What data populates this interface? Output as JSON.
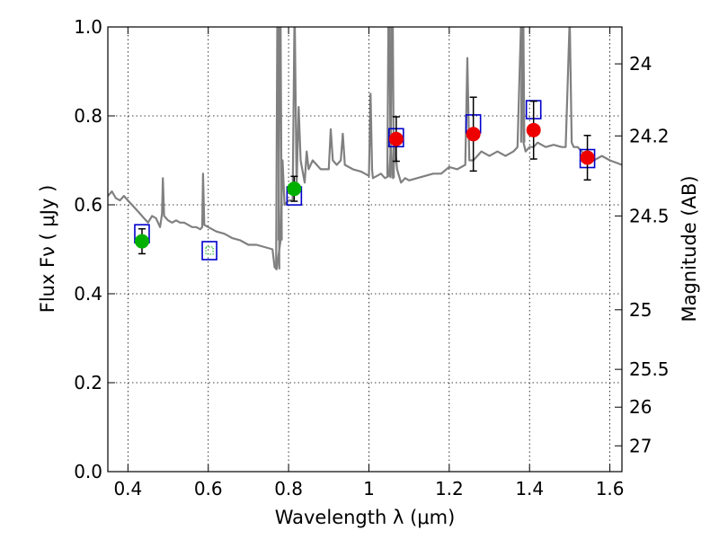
{
  "chart_data": {
    "type": "scatter",
    "title": "",
    "xlabel": "Wavelength  λ (μm)",
    "ylabel": "Flux  Fν  ( μJy )",
    "y2label": "Magnitude (AB)",
    "xlim": [
      0.35,
      1.63
    ],
    "ylim": [
      0.0,
      1.0
    ],
    "grid": true,
    "x_ticks": [
      0.4,
      0.6,
      0.8,
      1.0,
      1.2,
      1.4,
      1.6
    ],
    "x_tick_labels": [
      "0.4",
      "0.6",
      "0.8",
      "1",
      "1.2",
      "1.4",
      "1.6"
    ],
    "y_ticks": [
      0.0,
      0.2,
      0.4,
      0.6,
      0.8,
      1.0
    ],
    "y_tick_labels": [
      "0.0",
      "0.2",
      "0.4",
      "0.6",
      "0.8",
      "1.0"
    ],
    "mag_ticks": [
      {
        "y": 0.917,
        "label": "24"
      },
      {
        "y": 0.755,
        "label": "24.2"
      },
      {
        "y": 0.575,
        "label": "24.5"
      },
      {
        "y": 0.364,
        "label": "25"
      },
      {
        "y": 0.23,
        "label": "25.5"
      },
      {
        "y": 0.145,
        "label": "26"
      },
      {
        "y": 0.058,
        "label": "27"
      }
    ],
    "colors": {
      "spectrum": "#808080",
      "model_box": "#0000cc",
      "green_point": "#00b000",
      "red_point": "#ee0000",
      "error_bar": "#000000"
    },
    "spectrum": {
      "x": [
        0.35,
        0.36,
        0.37,
        0.38,
        0.39,
        0.4,
        0.41,
        0.42,
        0.43,
        0.44,
        0.45,
        0.46,
        0.47,
        0.48,
        0.485,
        0.487,
        0.49,
        0.5,
        0.51,
        0.52,
        0.53,
        0.54,
        0.55,
        0.56,
        0.57,
        0.58,
        0.585,
        0.587,
        0.59,
        0.6,
        0.62,
        0.64,
        0.66,
        0.68,
        0.7,
        0.72,
        0.74,
        0.76,
        0.765,
        0.77,
        0.78,
        0.785,
        0.79,
        0.8,
        0.81,
        0.815,
        0.82,
        0.825,
        0.83,
        0.84,
        0.845,
        0.85,
        0.86,
        0.87,
        0.88,
        0.9,
        0.905,
        0.91,
        0.92,
        0.93,
        0.935,
        0.94,
        0.96,
        0.98,
        0.99,
        1.0,
        1.004,
        1.008,
        1.01,
        1.02,
        1.03,
        1.04,
        1.05,
        1.055,
        1.06,
        1.065,
        1.07,
        1.08,
        1.09,
        1.1,
        1.12,
        1.14,
        1.16,
        1.18,
        1.2,
        1.22,
        1.24,
        1.245,
        1.25,
        1.26,
        1.28,
        1.3,
        1.32,
        1.34,
        1.36,
        1.37,
        1.38,
        1.385,
        1.39,
        1.4,
        1.41,
        1.42,
        1.44,
        1.46,
        1.48,
        1.49,
        1.5,
        1.505,
        1.51,
        1.52,
        1.54,
        1.56,
        1.58,
        1.6,
        1.63
      ],
      "y": [
        0.62,
        0.63,
        0.615,
        0.61,
        0.62,
        0.61,
        0.6,
        0.59,
        0.58,
        0.57,
        0.56,
        0.575,
        0.57,
        0.55,
        0.58,
        0.66,
        0.575,
        0.565,
        0.56,
        0.565,
        0.56,
        0.56,
        0.555,
        0.55,
        0.55,
        0.545,
        0.55,
        0.67,
        0.555,
        0.55,
        0.54,
        0.535,
        0.525,
        0.52,
        0.51,
        0.51,
        0.505,
        0.5,
        0.46,
        0.455,
        0.52,
        0.7,
        0.6,
        0.61,
        0.61,
        1.05,
        0.64,
        0.82,
        0.7,
        0.65,
        0.72,
        0.68,
        0.7,
        0.69,
        0.68,
        0.68,
        0.77,
        0.7,
        0.69,
        0.7,
        0.76,
        0.69,
        0.68,
        0.675,
        0.67,
        0.665,
        0.85,
        0.68,
        0.66,
        0.665,
        0.67,
        0.66,
        0.665,
        0.73,
        0.66,
        0.73,
        0.68,
        0.65,
        0.66,
        0.655,
        0.66,
        0.665,
        0.67,
        0.67,
        0.685,
        0.68,
        0.69,
        0.93,
        0.7,
        0.7,
        0.72,
        0.71,
        0.72,
        0.71,
        0.72,
        0.73,
        1.05,
        0.74,
        0.72,
        0.73,
        0.73,
        0.74,
        0.73,
        0.735,
        0.73,
        0.73,
        1.02,
        0.74,
        0.73,
        0.73,
        0.71,
        0.7,
        0.71,
        0.7,
        0.69
      ]
    },
    "spectrum_peaks": [
      {
        "x": 0.773,
        "y": 1.2
      },
      {
        "x": 0.779,
        "y": 1.2
      },
      {
        "x": 1.05,
        "y": 1.2
      },
      {
        "x": 1.058,
        "y": 1.2
      },
      {
        "x": 1.383,
        "y": 1.2
      },
      {
        "x": 1.497,
        "y": 1.2
      }
    ],
    "model_boxes": [
      {
        "x": 0.435,
        "y": 0.535
      },
      {
        "x": 0.603,
        "y": 0.497
      },
      {
        "x": 0.814,
        "y": 0.62
      },
      {
        "x": 1.068,
        "y": 0.751
      },
      {
        "x": 1.26,
        "y": 0.782
      },
      {
        "x": 1.41,
        "y": 0.814
      },
      {
        "x": 1.544,
        "y": 0.704
      }
    ],
    "series": [
      {
        "color": "green",
        "x": [
          0.435,
          0.603,
          0.814
        ],
        "y": [
          0.518,
          0.497,
          0.636
        ],
        "yerr": [
          0.028,
          0.0,
          0.028
        ]
      },
      {
        "color": "red",
        "x": [
          1.068,
          1.26,
          1.41,
          1.544
        ],
        "y": [
          0.748,
          0.759,
          0.768,
          0.706
        ],
        "yerr": [
          0.05,
          0.083,
          0.065,
          0.05
        ]
      }
    ]
  }
}
